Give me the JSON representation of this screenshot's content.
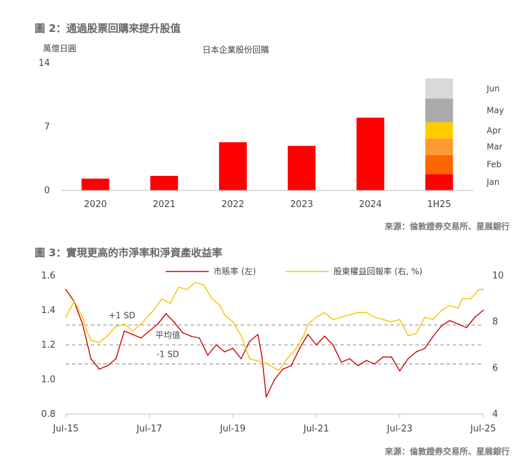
{
  "figure2": {
    "title": "圖 2：通過股票回購來提升股值",
    "unit_label": "萬億日圓",
    "series_label": "日本企業股份回購",
    "source": "來源：倫敦證券交易所、星展銀行",
    "chart_data": {
      "type": "bar",
      "title": "日本企業股份回購",
      "ylabel": "萬億日圓",
      "ylim": [
        0,
        14
      ],
      "yticks": [
        "0",
        "7",
        "14"
      ],
      "categories": [
        "2020",
        "2021",
        "2022",
        "2023",
        "2024",
        "1H25"
      ],
      "values": [
        1.3,
        1.6,
        5.3,
        4.9,
        8.0,
        12.3
      ],
      "bar_color": "#ff0000",
      "stacked_1H25": [
        {
          "month": "Jan",
          "value": 1.8,
          "color": "#ff0000"
        },
        {
          "month": "Feb",
          "value": 2.1,
          "color": "#ff6600"
        },
        {
          "month": "Mar",
          "value": 1.8,
          "color": "#ff9933"
        },
        {
          "month": "Apr",
          "value": 1.8,
          "color": "#ffcc00"
        },
        {
          "month": "May",
          "value": 2.6,
          "color": "#aaaaaa"
        },
        {
          "month": "Jun",
          "value": 2.2,
          "color": "#d9d9d9"
        }
      ]
    }
  },
  "figure3": {
    "title": "圖 3：實現更高的市淨率和淨資產收益率",
    "source": "來源：倫敦證券交易所、星展銀行",
    "legend": {
      "pb": "市賬率 (左)",
      "roe": "股東權益回報率 (右, %)"
    },
    "annotations": {
      "plus_sd": "+1 SD",
      "mean": "平均值",
      "minus_sd": "-1 SD"
    },
    "chart_data": {
      "type": "line",
      "x_tick_labels": [
        "Jul-15",
        "Jul-17",
        "Jul-19",
        "Jul-21",
        "Jul-23",
        "Jul-25"
      ],
      "x_range": [
        2015.5,
        2025.5
      ],
      "ylim_left": [
        0.8,
        1.6
      ],
      "yticks_left": [
        "0.8",
        "1.0",
        "1.2",
        "1.4",
        "1.6"
      ],
      "ylim_right": [
        4,
        10
      ],
      "yticks_right": [
        "4",
        "6",
        "8",
        "10"
      ],
      "reference_lines": {
        "plus_1_sd": 1.315,
        "mean": 1.2,
        "minus_1_sd": 1.09
      },
      "series": [
        {
          "name": "市賬率 (左)",
          "axis": "left",
          "color": "#cc0000",
          "x": [
            2015.5,
            2015.7,
            2015.9,
            2016.1,
            2016.3,
            2016.5,
            2016.7,
            2016.9,
            2017.1,
            2017.3,
            2017.5,
            2017.7,
            2017.9,
            2018.1,
            2018.3,
            2018.5,
            2018.7,
            2018.9,
            2019.1,
            2019.3,
            2019.5,
            2019.7,
            2019.9,
            2020.1,
            2020.2,
            2020.3,
            2020.5,
            2020.7,
            2020.9,
            2021.1,
            2021.3,
            2021.5,
            2021.7,
            2021.9,
            2022.1,
            2022.3,
            2022.5,
            2022.7,
            2022.9,
            2023.1,
            2023.3,
            2023.5,
            2023.7,
            2023.9,
            2024.1,
            2024.3,
            2024.5,
            2024.7,
            2024.9,
            2025.1,
            2025.3,
            2025.5
          ],
          "values": [
            1.52,
            1.45,
            1.32,
            1.12,
            1.06,
            1.08,
            1.12,
            1.28,
            1.26,
            1.24,
            1.28,
            1.32,
            1.38,
            1.33,
            1.27,
            1.25,
            1.24,
            1.14,
            1.2,
            1.16,
            1.18,
            1.12,
            1.22,
            1.26,
            1.13,
            0.9,
            1.0,
            1.06,
            1.08,
            1.18,
            1.26,
            1.2,
            1.25,
            1.2,
            1.1,
            1.12,
            1.08,
            1.11,
            1.09,
            1.13,
            1.13,
            1.05,
            1.12,
            1.16,
            1.18,
            1.25,
            1.31,
            1.34,
            1.32,
            1.3,
            1.36,
            1.4
          ]
        },
        {
          "name": "股東權益回報率 (右, %)",
          "axis": "right",
          "color": "#f5c400",
          "x": [
            2015.5,
            2015.7,
            2015.9,
            2016.0,
            2016.1,
            2016.3,
            2016.5,
            2016.7,
            2016.9,
            2017.1,
            2017.3,
            2017.5,
            2017.6,
            2017.8,
            2018.0,
            2018.2,
            2018.4,
            2018.6,
            2018.8,
            2019.0,
            2019.2,
            2019.3,
            2019.5,
            2019.7,
            2019.9,
            2020.1,
            2020.3,
            2020.4,
            2020.6,
            2020.8,
            2021.0,
            2021.2,
            2021.3,
            2021.5,
            2021.7,
            2021.9,
            2022.1,
            2022.3,
            2022.5,
            2022.7,
            2022.9,
            2023.1,
            2023.3,
            2023.5,
            2023.7,
            2023.9,
            2024.1,
            2024.3,
            2024.5,
            2024.7,
            2024.9,
            2025.0,
            2025.2,
            2025.4,
            2025.5
          ],
          "values": [
            8.2,
            8.9,
            8.2,
            7.6,
            7.2,
            7.1,
            7.4,
            7.8,
            7.9,
            7.6,
            7.9,
            8.3,
            8.5,
            9.0,
            8.8,
            9.5,
            9.4,
            9.7,
            9.6,
            9.0,
            8.7,
            8.3,
            8.0,
            7.4,
            6.4,
            6.3,
            6.2,
            6.1,
            5.9,
            6.4,
            6.8,
            7.4,
            7.9,
            8.2,
            8.4,
            8.1,
            8.2,
            8.3,
            8.4,
            8.4,
            8.2,
            8.1,
            8.0,
            8.1,
            7.4,
            7.5,
            8.2,
            8.1,
            8.5,
            8.7,
            8.6,
            9.0,
            9.0,
            9.4,
            9.4
          ]
        }
      ]
    }
  }
}
